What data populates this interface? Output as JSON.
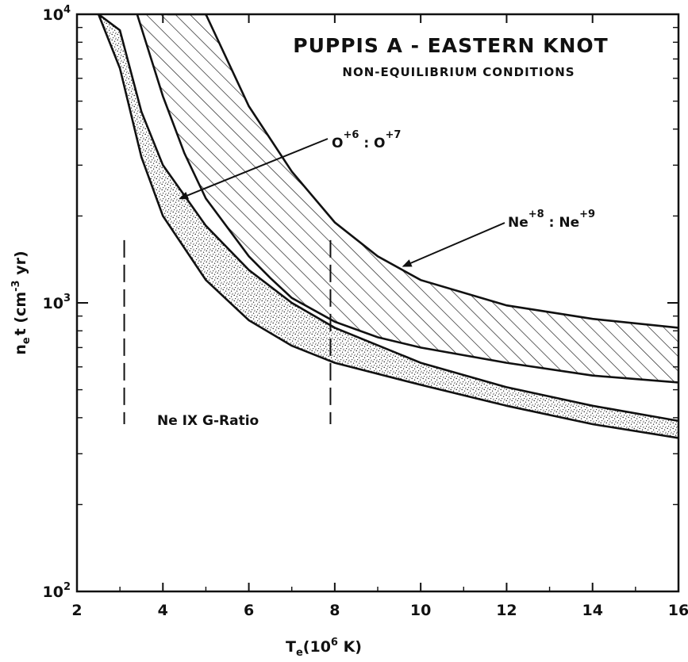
{
  "chart_data": {
    "type": "area",
    "title": "PUPPIS  A - EASTERN KNOT",
    "subtitle": "NON-EQUILIBRIUM  CONDITIONS",
    "xlabel": "T_e(10^6 K)",
    "xlabel_main": "T",
    "xlabel_sub": "e",
    "xlabel_pre": "(10",
    "xlabel_sup": "6",
    "xlabel_post": " K)",
    "ylabel": "n_e t (cm^-3 yr)",
    "ylabel_n": "n",
    "ylabel_sub": "e",
    "ylabel_t": "t (cm",
    "ylabel_sup": "-3",
    "ylabel_post": " yr)",
    "x_scale": "linear",
    "y_scale": "log",
    "xlim": [
      2,
      16
    ],
    "ylim": [
      100,
      10000
    ],
    "x_ticks": [
      2,
      4,
      6,
      8,
      10,
      12,
      14,
      16
    ],
    "x_tick_labels": [
      "2",
      "4",
      "6",
      "8",
      "10",
      "12",
      "14",
      "16"
    ],
    "y_ticks": [
      {
        "value": 100,
        "base": "10",
        "exp": "2"
      },
      {
        "value": 1000,
        "base": "10",
        "exp": "3"
      },
      {
        "value": 10000,
        "base": "10",
        "exp": "4"
      }
    ],
    "bands": [
      {
        "name": "O+6 : O+7",
        "fill": "stipple",
        "upper": {
          "x": [
            2.5,
            3.0,
            3.5,
            4.0,
            5.0,
            6.0,
            7.0,
            8.0,
            10.0,
            12.0,
            14.0,
            16.0
          ],
          "y": [
            10000,
            8800,
            4600,
            3000,
            1850,
            1300,
            1000,
            820,
            620,
            510,
            440,
            390
          ]
        },
        "lower": {
          "x": [
            2.5,
            3.0,
            3.5,
            4.0,
            5.0,
            6.0,
            7.0,
            8.0,
            10.0,
            12.0,
            14.0,
            16.0
          ],
          "y": [
            10000,
            6500,
            3200,
            2000,
            1200,
            870,
            710,
            620,
            520,
            440,
            380,
            340
          ]
        }
      },
      {
        "name": "Ne+8 : Ne+9",
        "fill": "hatch",
        "upper": {
          "x": [
            4.1,
            4.5,
            5.0,
            6.0,
            7.0,
            8.0,
            9.0,
            10.0,
            12.0,
            14.0,
            16.0
          ],
          "y": [
            10000,
            10000,
            10000,
            4800,
            2850,
            1900,
            1450,
            1200,
            980,
            880,
            820
          ]
        },
        "lower": {
          "x": [
            3.4,
            4.0,
            4.5,
            5.0,
            6.0,
            6.5,
            7.0,
            8.0,
            9.0,
            10.0,
            12.0,
            14.0,
            16.0
          ],
          "y": [
            10000,
            5200,
            3300,
            2300,
            1450,
            1220,
            1040,
            860,
            760,
            700,
            620,
            560,
            530
          ]
        }
      }
    ],
    "vertical_lines": [
      {
        "x": 3.1,
        "y_range": [
          380,
          1650
        ],
        "style": "dashed"
      },
      {
        "x": 7.9,
        "y_range": [
          380,
          1650
        ],
        "style": "dashed"
      }
    ],
    "annotations": [
      {
        "text_base": "O",
        "sup1": "+6",
        "sep": " : ",
        "text_base2": "O",
        "sup2": "+7",
        "arrow_to": {
          "x": 4.4,
          "y": 2300
        }
      },
      {
        "text_base": "Ne",
        "sup1": "+8",
        "sep": " : ",
        "text_base2": "Ne",
        "sup2": "+9",
        "arrow_to": {
          "x": 9.6,
          "y": 1340
        }
      },
      {
        "text": "Ne  IX  G-Ratio"
      }
    ]
  }
}
